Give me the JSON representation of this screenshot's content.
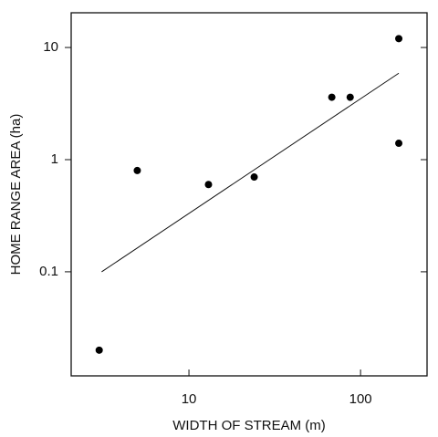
{
  "chart_data": {
    "type": "scatter",
    "x_label": "WIDTH OF STREAM (m)",
    "y_label": "HOME RANGE AREA (ha)",
    "x": [
      3,
      5,
      13,
      24,
      68,
      87,
      167,
      167
    ],
    "values": [
      0.02,
      0.8,
      0.6,
      0.7,
      3.6,
      3.6,
      12,
      1.4
    ],
    "color": "#000000",
    "fit": {
      "x": [
        3.1,
        167
      ],
      "y": [
        0.1,
        5.9
      ]
    },
    "xlim": [
      2.06,
      244
    ],
    "ylim": [
      0.0118,
      20.4
    ],
    "xticks": [
      10,
      100
    ],
    "yticks": [
      0.1,
      1,
      10
    ],
    "log_x": true,
    "log_y": true
  }
}
